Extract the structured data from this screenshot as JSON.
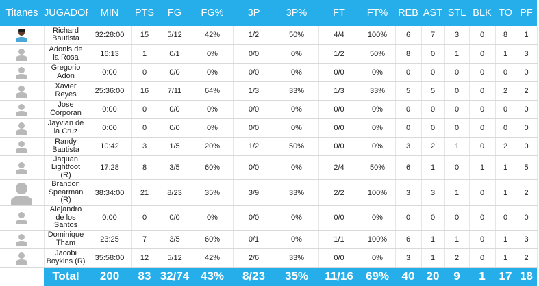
{
  "header": {
    "team": "Titanes",
    "player": "JUGADOR",
    "min": "MIN",
    "pts": "PTS",
    "fg": "FG",
    "fgp": "FG%",
    "tp": "3P",
    "tpp": "3P%",
    "ft": "FT",
    "ftp": "FT%",
    "reb": "REB",
    "ast": "AST",
    "stl": "STL",
    "blk": "BLK",
    "to": "TO",
    "pf": "PF"
  },
  "players": [
    {
      "name": "Richard Bautista",
      "min": "32:28:00",
      "pts": "15",
      "fg": "5/12",
      "fgp": "42%",
      "tp": "1/2",
      "tpp": "50%",
      "ft": "4/4",
      "ftp": "100%",
      "reb": "6",
      "ast": "7",
      "stl": "3",
      "blk": "0",
      "to": "8",
      "pf": "1"
    },
    {
      "name": "Adonis de la Rosa",
      "min": "16:13",
      "pts": "1",
      "fg": "0/1",
      "fgp": "0%",
      "tp": "0/0",
      "tpp": "0%",
      "ft": "1/2",
      "ftp": "50%",
      "reb": "8",
      "ast": "0",
      "stl": "1",
      "blk": "0",
      "to": "1",
      "pf": "3"
    },
    {
      "name": "Gregorio Adon",
      "min": "0:00",
      "pts": "0",
      "fg": "0/0",
      "fgp": "0%",
      "tp": "0/0",
      "tpp": "0%",
      "ft": "0/0",
      "ftp": "0%",
      "reb": "0",
      "ast": "0",
      "stl": "0",
      "blk": "0",
      "to": "0",
      "pf": "0"
    },
    {
      "name": "Xavier Reyes",
      "min": "25:36:00",
      "pts": "16",
      "fg": "7/11",
      "fgp": "64%",
      "tp": "1/3",
      "tpp": "33%",
      "ft": "1/3",
      "ftp": "33%",
      "reb": "5",
      "ast": "5",
      "stl": "0",
      "blk": "0",
      "to": "2",
      "pf": "2"
    },
    {
      "name": "Jose Corporan",
      "min": "0:00",
      "pts": "0",
      "fg": "0/0",
      "fgp": "0%",
      "tp": "0/0",
      "tpp": "0%",
      "ft": "0/0",
      "ftp": "0%",
      "reb": "0",
      "ast": "0",
      "stl": "0",
      "blk": "0",
      "to": "0",
      "pf": "0"
    },
    {
      "name": "Jayvian de la Cruz",
      "min": "0:00",
      "pts": "0",
      "fg": "0/0",
      "fgp": "0%",
      "tp": "0/0",
      "tpp": "0%",
      "ft": "0/0",
      "ftp": "0%",
      "reb": "0",
      "ast": "0",
      "stl": "0",
      "blk": "0",
      "to": "0",
      "pf": "0"
    },
    {
      "name": "Randy Bautista",
      "min": "10:42",
      "pts": "3",
      "fg": "1/5",
      "fgp": "20%",
      "tp": "1/2",
      "tpp": "50%",
      "ft": "0/0",
      "ftp": "0%",
      "reb": "3",
      "ast": "2",
      "stl": "1",
      "blk": "0",
      "to": "2",
      "pf": "0"
    },
    {
      "name": "Jaquan Lightfoot (R)",
      "min": "17:28",
      "pts": "8",
      "fg": "3/5",
      "fgp": "60%",
      "tp": "0/0",
      "tpp": "0%",
      "ft": "2/4",
      "ftp": "50%",
      "reb": "6",
      "ast": "1",
      "stl": "0",
      "blk": "1",
      "to": "1",
      "pf": "5"
    },
    {
      "name": "Brandon Spearman (R)",
      "min": "38:34:00",
      "pts": "21",
      "fg": "8/23",
      "fgp": "35%",
      "tp": "3/9",
      "tpp": "33%",
      "ft": "2/2",
      "ftp": "100%",
      "reb": "3",
      "ast": "3",
      "stl": "1",
      "blk": "0",
      "to": "1",
      "pf": "2"
    },
    {
      "name": "Alejandro de los Santos",
      "min": "0:00",
      "pts": "0",
      "fg": "0/0",
      "fgp": "0%",
      "tp": "0/0",
      "tpp": "0%",
      "ft": "0/0",
      "ftp": "0%",
      "reb": "0",
      "ast": "0",
      "stl": "0",
      "blk": "0",
      "to": "0",
      "pf": "0"
    },
    {
      "name": "Dominique Tham",
      "min": "23:25",
      "pts": "7",
      "fg": "3/5",
      "fgp": "60%",
      "tp": "0/1",
      "tpp": "0%",
      "ft": "1/1",
      "ftp": "100%",
      "reb": "6",
      "ast": "1",
      "stl": "1",
      "blk": "0",
      "to": "1",
      "pf": "3"
    },
    {
      "name": "Jacobi Boykins (R)",
      "min": "35:58:00",
      "pts": "12",
      "fg": "5/12",
      "fgp": "42%",
      "tp": "2/6",
      "tpp": "33%",
      "ft": "0/0",
      "ftp": "0%",
      "reb": "3",
      "ast": "1",
      "stl": "2",
      "blk": "0",
      "to": "1",
      "pf": "2"
    }
  ],
  "totals": {
    "label": "Total",
    "min": "200",
    "pts": "83",
    "fg": "32/74",
    "fgp": "43%",
    "tp": "8/23",
    "tpp": "35%",
    "ft": "11/16",
    "ftp": "69%",
    "reb": "40",
    "ast": "20",
    "stl": "9",
    "blk": "1",
    "to": "17",
    "pf": "18"
  },
  "colors": {
    "accent": "#25aeea",
    "text": "#222222",
    "placeholder_avatar": "#b9b9b9"
  }
}
